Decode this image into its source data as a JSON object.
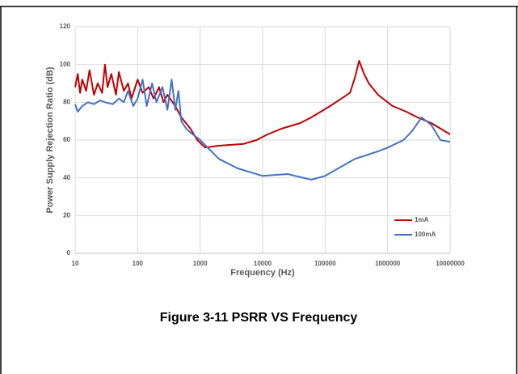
{
  "chart_data": {
    "type": "line",
    "title": "Figure 3-11 PSRR VS Frequency",
    "x_label": "Frequency (Hz)",
    "y_label": "Power Supply Rejection Ratio (dB)",
    "xscale": "log",
    "xlim": [
      10,
      10000000
    ],
    "xticks": [
      10,
      100,
      1000,
      10000,
      100000,
      1000000,
      10000000
    ],
    "ylim": [
      0,
      120
    ],
    "yticks": [
      0,
      20,
      40,
      60,
      80,
      100,
      120
    ],
    "grid": true,
    "legend": "lower right",
    "series": [
      {
        "name": "1mA",
        "color": "#c00000",
        "x": [
          10,
          11,
          12,
          13,
          15,
          17,
          20,
          23,
          27,
          30,
          33,
          38,
          45,
          50,
          60,
          70,
          80,
          100,
          120,
          150,
          180,
          220,
          260,
          300,
          400,
          500,
          700,
          900,
          1200,
          2000,
          5000,
          8000,
          12000,
          20000,
          40000,
          60000,
          120000,
          250000,
          300000,
          350000,
          420000,
          500000,
          700000,
          1000000,
          1200000,
          2000000,
          3000000,
          5000000,
          10000000
        ],
        "values": [
          88,
          95,
          85,
          92,
          86,
          97,
          84,
          90,
          85,
          100,
          88,
          95,
          84,
          96,
          86,
          90,
          82,
          92,
          85,
          88,
          82,
          88,
          80,
          84,
          78,
          72,
          66,
          60,
          56,
          57,
          58,
          60,
          63,
          66,
          69,
          72,
          78,
          85,
          93,
          102,
          95,
          90,
          84,
          80,
          78,
          75,
          72,
          69,
          63
        ]
      },
      {
        "name": "100mA",
        "color": "#4472c4",
        "x": [
          10,
          11,
          13,
          16,
          20,
          25,
          30,
          40,
          50,
          60,
          70,
          85,
          100,
          120,
          140,
          170,
          200,
          250,
          300,
          350,
          400,
          450,
          500,
          600,
          700,
          1000,
          2000,
          4000,
          10000,
          25000,
          60000,
          100000,
          300000,
          700000,
          1000000,
          1800000,
          2500000,
          3500000,
          5000000,
          7000000,
          10000000
        ],
        "values": [
          79,
          75,
          78,
          80,
          79,
          81,
          80,
          79,
          82,
          80,
          86,
          78,
          82,
          92,
          78,
          90,
          80,
          88,
          76,
          92,
          76,
          86,
          70,
          66,
          64,
          60,
          50,
          45,
          41,
          42,
          39,
          41,
          50,
          54,
          56,
          60,
          65,
          72,
          68,
          60,
          59
        ]
      }
    ]
  }
}
